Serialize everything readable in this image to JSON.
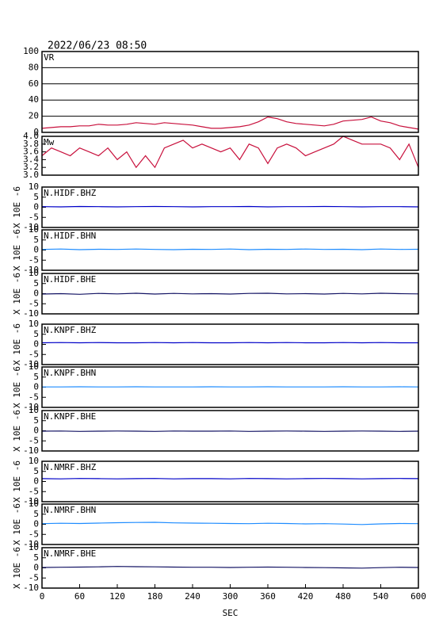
{
  "title": "2022/06/23 08:50",
  "chart_data": [
    {
      "type": "line",
      "title": "VR",
      "xlim": [
        0,
        600
      ],
      "ylim": [
        0,
        100
      ],
      "yticks": [
        0,
        20,
        40,
        60,
        80,
        100
      ],
      "grid": true,
      "color": "#c8103c",
      "x": [
        0,
        15,
        30,
        45,
        60,
        75,
        90,
        105,
        120,
        135,
        150,
        165,
        180,
        195,
        210,
        225,
        240,
        255,
        270,
        285,
        300,
        315,
        330,
        345,
        360,
        375,
        390,
        405,
        420,
        435,
        450,
        465,
        480,
        495,
        510,
        525,
        540,
        555,
        570,
        585,
        600
      ],
      "values": [
        5,
        6,
        7,
        7,
        8,
        8,
        10,
        9,
        9,
        10,
        12,
        11,
        10,
        12,
        11,
        10,
        9,
        7,
        5,
        5,
        6,
        7,
        9,
        13,
        19,
        17,
        13,
        11,
        10,
        9,
        8,
        10,
        14,
        15,
        16,
        19,
        14,
        12,
        8,
        6,
        4
      ]
    },
    {
      "type": "line",
      "title": "Mw",
      "xlim": [
        0,
        600
      ],
      "ylim": [
        3,
        4
      ],
      "yticks": [
        {
          "value": 3,
          "label": "3.0"
        },
        3.2,
        3.4,
        3.6,
        3.8,
        {
          "value": 4,
          "label": "4.0"
        }
      ],
      "grid": false,
      "color": "#c8103c",
      "x": [
        0,
        15,
        30,
        45,
        60,
        75,
        90,
        105,
        120,
        135,
        150,
        165,
        180,
        195,
        210,
        225,
        240,
        255,
        270,
        285,
        300,
        315,
        330,
        345,
        360,
        375,
        390,
        405,
        420,
        435,
        450,
        465,
        480,
        495,
        510,
        525,
        540,
        555,
        570,
        585,
        600
      ],
      "values": [
        3.5,
        3.7,
        3.6,
        3.5,
        3.7,
        3.6,
        3.5,
        3.7,
        3.4,
        3.6,
        3.2,
        3.5,
        3.2,
        3.7,
        3.8,
        3.9,
        3.7,
        3.8,
        3.7,
        3.6,
        3.7,
        3.4,
        3.8,
        3.7,
        3.3,
        3.7,
        3.8,
        3.7,
        3.5,
        3.6,
        3.7,
        3.8,
        4.0,
        3.9,
        3.8,
        3.8,
        3.8,
        3.7,
        3.4,
        3.8,
        3.2
      ]
    },
    {
      "type": "line",
      "title": "N.HIDF.BHZ",
      "ylabel": "X 10E -6",
      "xlim": [
        0,
        600
      ],
      "ylim": [
        -10,
        10
      ],
      "yticks": [
        -10,
        -5,
        0,
        5,
        10
      ],
      "grid": false,
      "color": "#0000c8",
      "x": [
        0,
        30,
        60,
        90,
        120,
        150,
        180,
        210,
        240,
        270,
        300,
        330,
        360,
        390,
        420,
        450,
        480,
        510,
        540,
        570,
        600
      ],
      "values": [
        0.3,
        0.2,
        0.4,
        0.3,
        0.2,
        0.3,
        0.4,
        0.3,
        0.2,
        0.3,
        0.3,
        0.4,
        0.2,
        0.3,
        0.3,
        0.4,
        0.3,
        0.2,
        0.3,
        0.3,
        0.2
      ]
    },
    {
      "type": "line",
      "title": "N.HIDF.BHN",
      "ylabel": "X 10E -6",
      "xlim": [
        0,
        600
      ],
      "ylim": [
        -10,
        10
      ],
      "yticks": [
        -10,
        -5,
        0,
        5,
        10
      ],
      "grid": false,
      "color": "#1e8cff",
      "x": [
        0,
        30,
        60,
        90,
        120,
        150,
        180,
        210,
        240,
        270,
        300,
        330,
        360,
        390,
        420,
        450,
        480,
        510,
        540,
        570,
        600
      ],
      "values": [
        0.3,
        0.5,
        0.2,
        0.4,
        0.3,
        0.5,
        0.3,
        0.2,
        0.4,
        0.3,
        0.5,
        0.2,
        0.4,
        0.3,
        0.5,
        0.3,
        0.4,
        0.2,
        0.5,
        0.3,
        0.4
      ]
    },
    {
      "type": "line",
      "title": "N.HIDF.BHE",
      "ylabel": "X 10E -6",
      "xlim": [
        0,
        600
      ],
      "ylim": [
        -10,
        10
      ],
      "yticks": [
        -10,
        -5,
        0,
        5,
        10
      ],
      "grid": false,
      "color": "#141464",
      "x": [
        0,
        30,
        60,
        90,
        120,
        150,
        180,
        210,
        240,
        270,
        300,
        330,
        360,
        390,
        420,
        450,
        480,
        510,
        540,
        570,
        600
      ],
      "values": [
        -0.2,
        0,
        -0.3,
        0.1,
        -0.1,
        0.2,
        -0.2,
        0.1,
        -0.1,
        0,
        -0.2,
        0.1,
        0.2,
        -0.1,
        0,
        -0.2,
        0.1,
        -0.1,
        0.2,
        0,
        -0.1
      ]
    },
    {
      "type": "line",
      "title": "N.KNPF.BHZ",
      "ylabel": "X 10E -6",
      "xlim": [
        0,
        600
      ],
      "ylim": [
        -10,
        10
      ],
      "yticks": [
        -10,
        -5,
        0,
        5,
        10
      ],
      "grid": false,
      "color": "#0000c8",
      "x": [
        0,
        30,
        60,
        90,
        120,
        150,
        180,
        210,
        240,
        270,
        300,
        330,
        360,
        390,
        420,
        450,
        480,
        510,
        540,
        570,
        600
      ],
      "values": [
        0.8,
        0.9,
        0.8,
        0.9,
        0.8,
        0.8,
        0.9,
        0.8,
        0.9,
        0.8,
        0.8,
        0.9,
        0.8,
        0.9,
        0.8,
        0.8,
        0.9,
        0.8,
        0.9,
        0.8,
        0.8
      ]
    },
    {
      "type": "line",
      "title": "N.KNPF.BHN",
      "ylabel": "X 10E -6",
      "xlim": [
        0,
        600
      ],
      "ylim": [
        -10,
        10
      ],
      "yticks": [
        -10,
        -5,
        0,
        5,
        10
      ],
      "grid": false,
      "color": "#1e8cff",
      "x": [
        0,
        30,
        60,
        90,
        120,
        150,
        180,
        210,
        240,
        270,
        300,
        330,
        360,
        390,
        420,
        450,
        480,
        510,
        540,
        570,
        600
      ],
      "values": [
        0.1,
        0.1,
        0.2,
        0.1,
        0.1,
        0.2,
        0.1,
        0.1,
        0.1,
        0.2,
        0.1,
        0.1,
        0.2,
        0.1,
        0.1,
        0.1,
        0.2,
        0.1,
        0.1,
        0.2,
        0.1
      ]
    },
    {
      "type": "line",
      "title": "N.KNPF.BHE",
      "ylabel": "X 10E -6",
      "xlim": [
        0,
        600
      ],
      "ylim": [
        -10,
        10
      ],
      "yticks": [
        -10,
        -5,
        0,
        5,
        10
      ],
      "grid": false,
      "color": "#141464",
      "x": [
        0,
        30,
        60,
        90,
        120,
        150,
        180,
        210,
        240,
        270,
        300,
        330,
        360,
        390,
        420,
        450,
        480,
        510,
        540,
        570,
        600
      ],
      "values": [
        -0.2,
        -0.1,
        -0.3,
        -0.2,
        -0.1,
        -0.2,
        -0.3,
        -0.1,
        -0.2,
        -0.2,
        -0.1,
        -0.3,
        -0.2,
        -0.1,
        -0.2,
        -0.3,
        -0.2,
        -0.1,
        -0.2,
        -0.3,
        -0.2
      ]
    },
    {
      "type": "line",
      "title": "N.NMRF.BHZ",
      "ylabel": "X 10E -6",
      "xlim": [
        0,
        600
      ],
      "ylim": [
        -10,
        10
      ],
      "yticks": [
        -10,
        -5,
        0,
        5,
        10
      ],
      "grid": false,
      "color": "#0000c8",
      "x": [
        0,
        30,
        60,
        90,
        120,
        150,
        180,
        210,
        240,
        270,
        300,
        330,
        360,
        390,
        420,
        450,
        480,
        510,
        540,
        570,
        600
      ],
      "values": [
        1.4,
        1.3,
        1.5,
        1.4,
        1.3,
        1.4,
        1.5,
        1.3,
        1.4,
        1.4,
        1.3,
        1.5,
        1.4,
        1.3,
        1.4,
        1.5,
        1.4,
        1.3,
        1.4,
        1.5,
        1.4
      ]
    },
    {
      "type": "line",
      "title": "N.NMRF.BHN",
      "ylabel": "X 10E -6",
      "xlim": [
        0,
        600
      ],
      "ylim": [
        -10,
        10
      ],
      "yticks": [
        -10,
        -5,
        0,
        5,
        10
      ],
      "grid": false,
      "color": "#1e8cff",
      "x": [
        0,
        30,
        60,
        90,
        120,
        150,
        180,
        210,
        240,
        270,
        300,
        330,
        360,
        390,
        420,
        450,
        480,
        510,
        540,
        570,
        600
      ],
      "values": [
        0.3,
        0.5,
        0.4,
        0.6,
        0.8,
        0.9,
        1.0,
        0.7,
        0.6,
        0.5,
        0.4,
        0.3,
        0.5,
        0.4,
        0.2,
        0.3,
        0.1,
        -0.1,
        0.2,
        0.4,
        0.3
      ]
    },
    {
      "type": "line",
      "title": "N.NMRF.BHE",
      "ylabel": "X 10E -6",
      "xlim": [
        0,
        600
      ],
      "ylim": [
        -10,
        10
      ],
      "yticks": [
        -10,
        -5,
        0,
        5,
        10
      ],
      "grid": false,
      "color": "#141464",
      "x": [
        0,
        30,
        60,
        90,
        120,
        150,
        180,
        210,
        240,
        270,
        300,
        330,
        360,
        390,
        420,
        450,
        480,
        510,
        540,
        570,
        600
      ],
      "values": [
        0.2,
        0.3,
        0.4,
        0.5,
        0.7,
        0.6,
        0.5,
        0.4,
        0.3,
        0.3,
        0.2,
        0.3,
        0.4,
        0.3,
        0.2,
        0.1,
        0.0,
        -0.1,
        0.1,
        0.3,
        0.2
      ],
      "xticks": [
        0,
        60,
        120,
        180,
        240,
        300,
        360,
        420,
        480,
        540,
        600
      ],
      "xlabel": "SEC"
    }
  ]
}
